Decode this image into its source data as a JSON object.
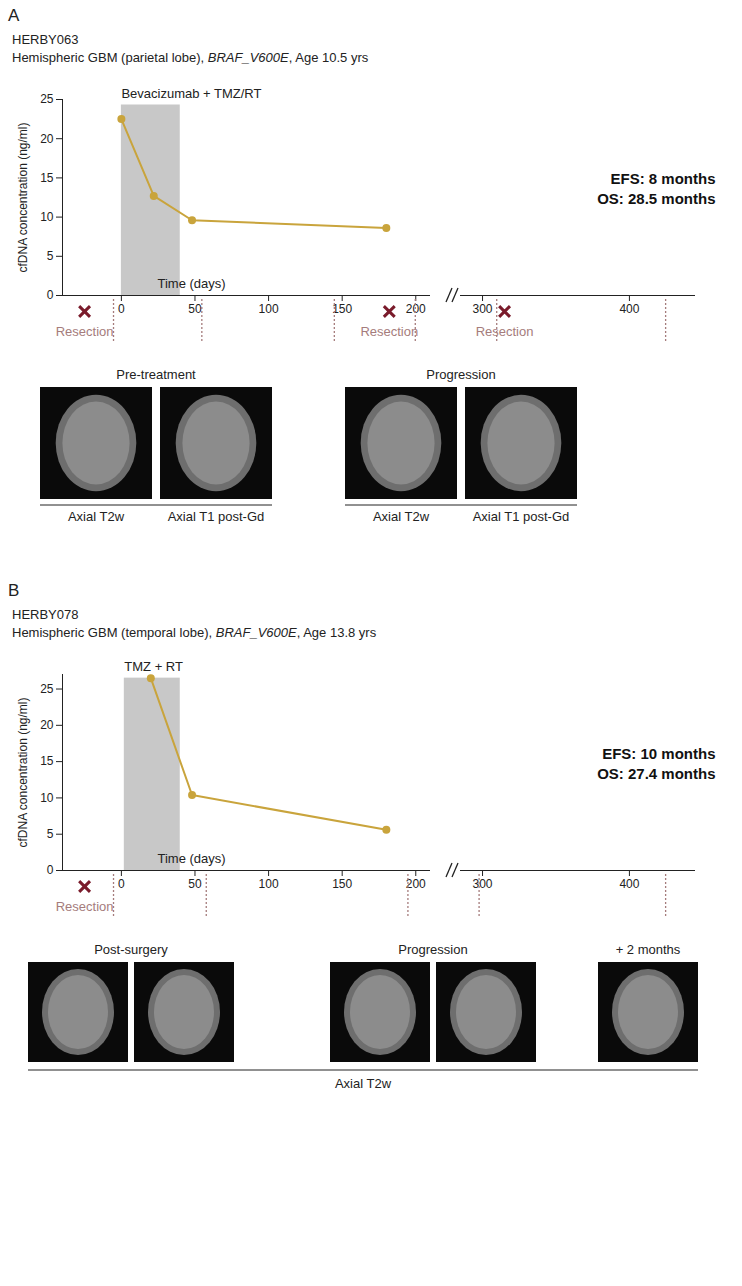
{
  "chart_data": [
    {
      "type": "line",
      "panel": "A",
      "title": "HERBY063",
      "subtitle": "Hemispheric GBM (parietal lobe), BRAF_V600E, Age 10.5 yrs",
      "y_label": "cfDNA concentration (ng/ml)",
      "x_label": "Time (days)",
      "color": "#c9a43c",
      "marker": "circle",
      "x": [
        0,
        22,
        48,
        180
      ],
      "values": [
        22.5,
        12.7,
        9.6,
        8.6
      ],
      "ylim": [
        0,
        25
      ],
      "yticks": [
        0,
        5,
        10,
        15,
        20,
        25
      ],
      "x_segments": [
        {
          "xlim": [
            -40,
            210
          ],
          "xticks": [
            0,
            50,
            100,
            150,
            200
          ]
        },
        {
          "xlim": [
            285,
            445
          ],
          "xticks": [
            300,
            400
          ]
        }
      ],
      "treatment": {
        "label": "Bevacizumab + TMZ/RT",
        "start": 0,
        "end": 40,
        "top": 24.3
      },
      "resections": {
        "label": "Resection",
        "days": [
          -25,
          182,
          315
        ]
      },
      "imaging_days": [
        -5,
        55,
        145,
        200,
        310,
        425
      ],
      "annotations": [
        "EFS: 8 months",
        "OS: 28.5 months"
      ],
      "image_groups": [
        {
          "title": "Pre-treatment",
          "images": [
            "Axial T2w",
            "Axial T1 post-Gd"
          ]
        },
        {
          "title": "Progression",
          "images": [
            "Axial T2w",
            "Axial T1 post-Gd"
          ]
        }
      ]
    },
    {
      "type": "line",
      "panel": "B",
      "title": "HERBY078",
      "subtitle": "Hemispheric GBM (temporal lobe), BRAF_V600E, Age 13.8 yrs",
      "y_label": "cfDNA concentration (ng/ml)",
      "x_label": "Time (days)",
      "color": "#c9a43c",
      "marker": "circle",
      "x": [
        20,
        48,
        180
      ],
      "values": [
        26.5,
        10.4,
        5.6
      ],
      "ylim": [
        0,
        27
      ],
      "yticks": [
        0,
        5,
        10,
        15,
        20,
        25
      ],
      "x_segments": [
        {
          "xlim": [
            -40,
            210
          ],
          "xticks": [
            0,
            50,
            100,
            150,
            200
          ]
        },
        {
          "xlim": [
            285,
            445
          ],
          "xticks": [
            300,
            400
          ]
        }
      ],
      "treatment": {
        "label": "TMZ + RT",
        "start": 2,
        "end": 40,
        "top": 26.5
      },
      "resections": {
        "label": "Resection",
        "days": [
          -25
        ]
      },
      "imaging_days": [
        -5,
        58,
        195,
        298,
        425
      ],
      "annotations": [
        "EFS: 10 months",
        "OS: 27.4 months"
      ],
      "image_groups": [
        {
          "title": "Post-surgery",
          "images": 2
        },
        {
          "title": "Progression",
          "images": 2
        },
        {
          "title": "+ 2 months",
          "images": 1
        }
      ],
      "image_caption": "Axial T2w"
    }
  ]
}
